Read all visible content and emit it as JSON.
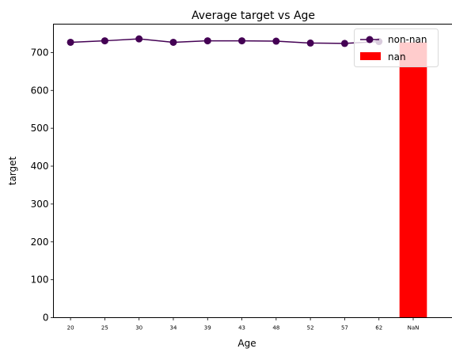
{
  "chart_data": {
    "type": "line",
    "title": "Average target vs Age",
    "xlabel": "Age",
    "ylabel": "target",
    "categories": [
      "20",
      "25",
      "30",
      "34",
      "39",
      "43",
      "48",
      "52",
      "57",
      "62",
      "NaN"
    ],
    "ylim": [
      0,
      775
    ],
    "yticks": [
      0,
      100,
      200,
      300,
      400,
      500,
      600,
      700
    ],
    "grid": false,
    "legend_position": "top-right",
    "series": [
      {
        "name": "non-nan",
        "type": "line",
        "marker": "circle",
        "color": "#440154",
        "values": [
          727,
          731,
          736,
          727,
          731,
          731,
          730,
          725,
          724,
          729,
          null
        ]
      },
      {
        "name": "nan",
        "type": "bar",
        "color": "#ff0000",
        "values": [
          null,
          null,
          null,
          null,
          null,
          null,
          null,
          null,
          null,
          null,
          727
        ]
      }
    ]
  }
}
